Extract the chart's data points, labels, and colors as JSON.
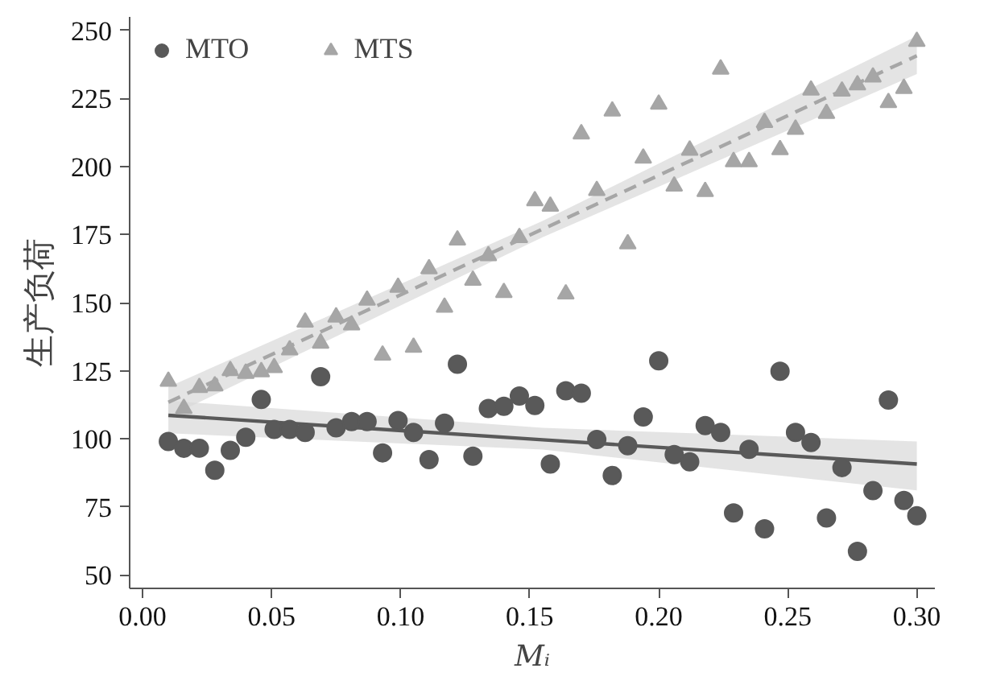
{
  "chart_data": {
    "type": "scatter",
    "xlabel": "Mᵢ",
    "ylabel": "生产负荷",
    "xlim": [
      -0.005,
      0.307
    ],
    "ylim": [
      45,
      255
    ],
    "xticks": [
      {
        "value": 0,
        "label": "0.00"
      },
      {
        "value": 0.05,
        "label": "0.05"
      },
      {
        "value": 0.1,
        "label": "0.10"
      },
      {
        "value": 0.15,
        "label": "0.15"
      },
      {
        "value": 0.2,
        "label": "0.20"
      },
      {
        "value": 0.25,
        "label": "0.25"
      },
      {
        "value": 0.3,
        "label": "0.30"
      }
    ],
    "yticks": [
      50,
      75,
      100,
      125,
      150,
      175,
      200,
      225,
      250
    ],
    "grid": false,
    "legend": "top left",
    "series": [
      {
        "name": "MTO",
        "color": "#595959",
        "marker": "circle",
        "x": [
          0.01,
          0.016,
          0.022,
          0.028,
          0.034,
          0.04,
          0.046,
          0.051,
          0.057,
          0.063,
          0.069,
          0.075,
          0.081,
          0.087,
          0.093,
          0.099,
          0.105,
          0.111,
          0.117,
          0.122,
          0.128,
          0.134,
          0.14,
          0.146,
          0.152,
          0.158,
          0.164,
          0.17,
          0.176,
          0.182,
          0.188,
          0.194,
          0.2,
          0.206,
          0.212,
          0.218,
          0.224,
          0.229,
          0.235,
          0.241,
          0.247,
          0.253,
          0.259,
          0.265,
          0.271,
          0.277,
          0.283,
          0.289,
          0.295,
          0.3
        ],
        "values": [
          99,
          96.5,
          96.5,
          88.4,
          95.7,
          100.5,
          114.4,
          103.4,
          103.4,
          102.3,
          122.8,
          104,
          106.3,
          106.3,
          94.8,
          106.7,
          102.3,
          92.3,
          105.7,
          127.4,
          93.6,
          111.1,
          111.9,
          115.7,
          112.2,
          90.7,
          117.6,
          116.7,
          99.7,
          86.5,
          97.4,
          108,
          128.6,
          94.2,
          91.5,
          104.8,
          102.3,
          72.7,
          96.1,
          66.9,
          124.8,
          102.3,
          98.6,
          70.9,
          89.4,
          58.6,
          80.9,
          114.2,
          77.3,
          71.7
        ]
      },
      {
        "name": "MTS",
        "color": "#a6a6a6",
        "marker": "triangle",
        "x": [
          0.01,
          0.016,
          0.022,
          0.028,
          0.034,
          0.04,
          0.046,
          0.051,
          0.057,
          0.063,
          0.069,
          0.075,
          0.081,
          0.087,
          0.093,
          0.099,
          0.105,
          0.111,
          0.117,
          0.122,
          0.128,
          0.134,
          0.14,
          0.146,
          0.152,
          0.158,
          0.164,
          0.17,
          0.176,
          0.182,
          0.188,
          0.194,
          0.2,
          0.206,
          0.212,
          0.218,
          0.224,
          0.229,
          0.235,
          0.241,
          0.247,
          0.253,
          0.259,
          0.265,
          0.271,
          0.277,
          0.283,
          0.289,
          0.295,
          0.3
        ],
        "values": [
          121.1,
          111.1,
          118.8,
          119.4,
          125,
          124,
          124.6,
          126.1,
          132.6,
          142.8,
          135.1,
          144.7,
          141.8,
          150.9,
          130.7,
          155.6,
          133.6,
          162.4,
          148.3,
          173,
          158.2,
          167.2,
          153.7,
          173.9,
          187.4,
          185.4,
          153.2,
          212,
          191.2,
          220.4,
          171.6,
          203.1,
          222.9,
          192.8,
          206,
          190.8,
          235.8,
          201.8,
          201.8,
          216.2,
          206.2,
          213.7,
          228.1,
          219.5,
          227.7,
          230,
          232.9,
          223.5,
          228.7,
          246
        ]
      },
      {
        "type": "line",
        "color": "#595959",
        "line_style": "solid",
        "x": [
          0.01,
          0.155,
          0.3
        ],
        "values": [
          108.6,
          99.6,
          90.7
        ],
        "lower": [
          102,
          96,
          81
        ],
        "upper": [
          114,
          104,
          99
        ]
      },
      {
        "type": "line",
        "color": "#a6a6a6",
        "line_style": "dashed",
        "x": [
          0.01,
          0.155,
          0.3
        ],
        "values": [
          113.4,
          177,
          240.7
        ],
        "lower": [
          108,
          174,
          234
        ],
        "upper": [
          119,
          180,
          248
        ]
      }
    ]
  }
}
